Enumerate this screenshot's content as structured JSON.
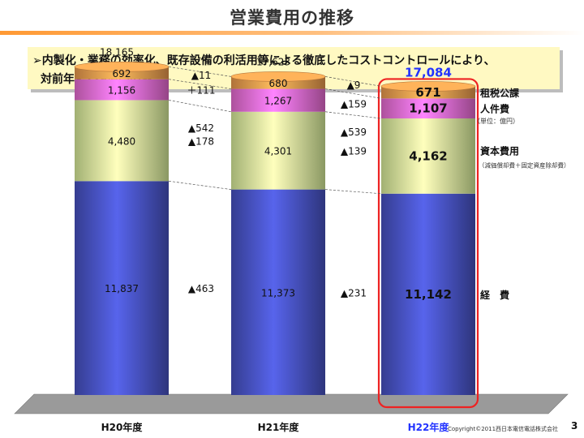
{
  "slide": {
    "title": "営業費用の推移",
    "summary_line1": "➢内製化・業務の効率化、既存設備の利活用等による徹底したコストコントロールにより、",
    "summary_line2": "対前年▲539億円の減。",
    "copyright": "Copyright©2011西日本電信電話株式会社",
    "page_number": "3",
    "colors": {
      "keihi": "#4a55c8",
      "shihonhiyou": "#dff5a0",
      "jinkenhi": "#f070d8",
      "sozei": "#f4a050",
      "highlight_text": "#2233ff",
      "highlight_border": "#ee2222",
      "floor": "#9a9a9a"
    }
  },
  "chart_data": {
    "type": "bar",
    "stacked": true,
    "unit_note": "（単位：億円）",
    "categories": [
      "H20年度",
      "H21年度",
      "H22年度"
    ],
    "totals": [
      18165,
      17623,
      17084
    ],
    "totals_text": [
      "18,165",
      "17,623",
      "17,084"
    ],
    "series": [
      {
        "name": "経　費",
        "values": [
          11837,
          11373,
          11142
        ],
        "labels": [
          "11,837",
          "11,373",
          "11,142"
        ],
        "color": "#4a55c8"
      },
      {
        "name": "資本費用",
        "sub": "（減価償却費＋固定資産除却費）",
        "values": [
          4480,
          4301,
          4162
        ],
        "labels": [
          "4,480",
          "4,301",
          "4,162"
        ],
        "color": "#dff5a0"
      },
      {
        "name": "人件費",
        "values": [
          1156,
          1267,
          1107
        ],
        "labels": [
          "1,156",
          "1,267",
          "1,107"
        ],
        "color": "#f070d8"
      },
      {
        "name": "租税公課",
        "values": [
          692,
          680,
          671
        ],
        "labels": [
          "692",
          "680",
          "671"
        ],
        "color": "#f4a050"
      }
    ],
    "changes": [
      {
        "total": "▲542",
        "series": [
          "▲463",
          "▲178",
          "＋111",
          "▲11"
        ]
      },
      {
        "total": "▲539",
        "series": [
          "▲231",
          "▲139",
          "▲159",
          "▲9"
        ]
      }
    ],
    "highlight_category": 2
  }
}
